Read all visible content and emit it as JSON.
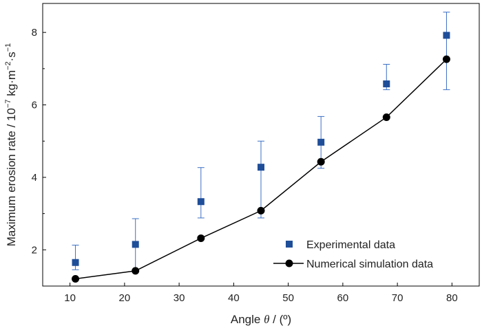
{
  "chart_data": {
    "type": "scatter",
    "xlabel_prefix": "Angle ",
    "xlabel_symbol": "θ",
    "xlabel_suffix": " / (º)",
    "ylabel_main": "Maximum erosion rate / 10",
    "ylabel_exp1": "−7",
    "ylabel_mid": " kg·m",
    "ylabel_exp2": "−2",
    "ylabel_mid2": "·s",
    "ylabel_exp3": "−1",
    "xlim": [
      5,
      85
    ],
    "ylim": [
      1.0,
      8.8
    ],
    "x_ticks": [
      10,
      20,
      30,
      40,
      50,
      60,
      70,
      80
    ],
    "y_ticks": [
      2,
      4,
      6,
      8
    ],
    "legend_position": "bottom-right",
    "grid": false,
    "series": [
      {
        "name": "Experimental data",
        "kind": "marker-square",
        "color": "#1f4e99",
        "x": [
          11,
          22,
          34,
          45,
          56,
          68,
          79
        ],
        "y": [
          1.65,
          2.15,
          3.33,
          4.28,
          4.97,
          6.58,
          7.92
        ],
        "err_low": [
          1.45,
          1.43,
          2.88,
          2.88,
          4.25,
          6.42,
          6.42
        ],
        "err_high": [
          2.13,
          2.86,
          4.27,
          5.0,
          5.68,
          7.12,
          8.56
        ]
      },
      {
        "name": "Numerical simulation data",
        "kind": "line-circle",
        "color": "#000000",
        "x": [
          11,
          22,
          34,
          45,
          56,
          68,
          79
        ],
        "y": [
          1.2,
          1.42,
          2.32,
          3.08,
          4.43,
          5.66,
          7.26
        ]
      }
    ]
  }
}
